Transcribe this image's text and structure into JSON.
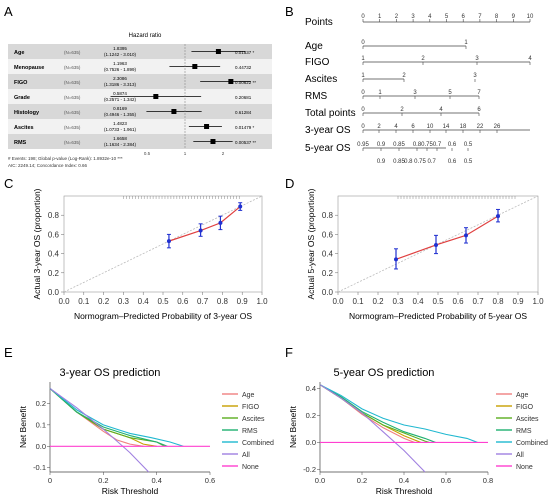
{
  "panels": {
    "A": {
      "letter": "A"
    },
    "B": {
      "letter": "B"
    },
    "C": {
      "letter": "C"
    },
    "D": {
      "letter": "D"
    },
    "E": {
      "letter": "E"
    },
    "F": {
      "letter": "F"
    }
  },
  "forest": {
    "title": "Hazard ratio",
    "rows": [
      {
        "name": "Age",
        "n": "(N=635)",
        "hr": "1.8395",
        "ci": "(1.1242 - 3.010)",
        "p": "0.01537 *"
      },
      {
        "name": "Menopause",
        "n": "(N=635)",
        "hr": "1.1963",
        "ci": "(0.7526 - 1.899)",
        "p": "0.44732"
      },
      {
        "name": "FIGO",
        "n": "(N=635)",
        "hr": "2.3086",
        "ci": "(1.3186 - 3.313)",
        "p": "0.00622 **"
      },
      {
        "name": "Grade",
        "n": "(N=635)",
        "hr": "0.5874",
        "ci": "(0.2571 - 1.342)",
        "p": "0.20681"
      },
      {
        "name": "Histology",
        "n": "(N=635)",
        "hr": "0.8169",
        "ci": "(0.4946 - 1.355)",
        "p": "0.61284"
      },
      {
        "name": "Ascites",
        "n": "(N=635)",
        "hr": "1.4823",
        "ci": "(1.0733 - 1.961)",
        "p": "0.01479 *"
      },
      {
        "name": "RMS",
        "n": "(N=635)",
        "hr": "1.6658",
        "ci": "(1.1634 - 2.384)",
        "p": "0.00537 **"
      }
    ],
    "footer1": "# Events: 198; Global p-value (Log-Rank): 1.8932e-10 ***",
    "footer2": "AIC: 2249.14; Concordance Index: 0.66",
    "axis_ticks": [
      "0.5",
      "1",
      "2"
    ]
  },
  "nomogram": {
    "rows": [
      {
        "label": "Points",
        "ticks": [
          "0",
          "1",
          "2",
          "3",
          "4",
          "5",
          "6",
          "7",
          "8",
          "9",
          "10"
        ]
      },
      {
        "label": "Age",
        "ticks": [
          "0",
          "1"
        ]
      },
      {
        "label": "FIGO",
        "ticks": [
          "1",
          "2",
          "3",
          "4"
        ]
      },
      {
        "label": "Ascites",
        "ticks": [
          "1",
          "2",
          "3"
        ]
      },
      {
        "label": "RMS",
        "ticks": [
          "0",
          "1",
          "3",
          "5",
          "7"
        ]
      },
      {
        "label": "Total points",
        "ticks": [
          "0",
          "2",
          "4",
          "6"
        ]
      },
      {
        "label": "3-year OS",
        "ticks": [
          "0",
          "2",
          "4",
          "6",
          "10",
          "14",
          "18",
          "22",
          "26"
        ]
      },
      {
        "label": "5-year OS",
        "ticks": [
          "0.95",
          "0.9",
          "0.85",
          "0.8",
          "0.75",
          "0.7",
          "0.6",
          "0.5"
        ]
      }
    ],
    "extra_ticks": [
      "0.9",
      "0.85",
      "0.8 0.75 0.7",
      "0.6",
      "0.5"
    ]
  },
  "chart_data": [
    {
      "panel": "C",
      "type": "scatter",
      "title": "",
      "xlabel": "Normogram–Predicted Probability of 3-year OS",
      "ylabel": "Actual 3-year OS (proportion)",
      "xlim": [
        0,
        1
      ],
      "ylim": [
        0,
        1
      ],
      "xticks": [
        "0.0",
        "0.1",
        "0.2",
        "0.3",
        "0.4",
        "0.5",
        "0.6",
        "0.7",
        "0.8",
        "0.9",
        "1.0"
      ],
      "yticks": [
        "0.0",
        "0.2",
        "0.4",
        "0.6",
        "0.8"
      ],
      "points": [
        {
          "x": 0.53,
          "y": 0.53,
          "lo": 0.46,
          "hi": 0.6
        },
        {
          "x": 0.69,
          "y": 0.64,
          "lo": 0.58,
          "hi": 0.71
        },
        {
          "x": 0.79,
          "y": 0.72,
          "lo": 0.65,
          "hi": 0.79
        },
        {
          "x": 0.89,
          "y": 0.89,
          "lo": 0.85,
          "hi": 0.93
        }
      ]
    },
    {
      "panel": "D",
      "type": "scatter",
      "title": "",
      "xlabel": "Normogram–Predicted Probability of 5-year OS",
      "ylabel": "Actual 5-year OS (proportion)",
      "xlim": [
        0,
        1
      ],
      "ylim": [
        0,
        1
      ],
      "xticks": [
        "0.0",
        "0.1",
        "0.2",
        "0.3",
        "0.4",
        "0.5",
        "0.6",
        "0.7",
        "0.8",
        "0.9",
        "1.0"
      ],
      "yticks": [
        "0.0",
        "0.2",
        "0.4",
        "0.6",
        "0.8"
      ],
      "points": [
        {
          "x": 0.29,
          "y": 0.34,
          "lo": 0.24,
          "hi": 0.45
        },
        {
          "x": 0.49,
          "y": 0.49,
          "lo": 0.4,
          "hi": 0.59
        },
        {
          "x": 0.64,
          "y": 0.59,
          "lo": 0.51,
          "hi": 0.67
        },
        {
          "x": 0.8,
          "y": 0.79,
          "lo": 0.73,
          "hi": 0.86
        }
      ]
    },
    {
      "panel": "E",
      "type": "line",
      "title": "3-year OS prediction",
      "xlabel": "Risk Threshold",
      "ylabel": "Net Benefit",
      "xlim": [
        0,
        0.6
      ],
      "ylim": [
        -0.12,
        0.3
      ],
      "xticks": [
        0,
        0.2,
        0.4,
        0.6
      ],
      "yticks": [
        -0.1,
        0.0,
        0.1,
        0.2
      ],
      "series": [
        {
          "name": "Age",
          "color": "#f08080",
          "points": [
            [
              0,
              0.27
            ],
            [
              0.1,
              0.16
            ],
            [
              0.2,
              0.07
            ],
            [
              0.25,
              0.03
            ],
            [
              0.3,
              0.01
            ],
            [
              0.35,
              0.0
            ]
          ]
        },
        {
          "name": "FIGO",
          "color": "#c8a000",
          "points": [
            [
              0,
              0.27
            ],
            [
              0.1,
              0.16
            ],
            [
              0.2,
              0.08
            ],
            [
              0.3,
              0.04
            ],
            [
              0.35,
              0.01
            ],
            [
              0.4,
              0.0
            ]
          ]
        },
        {
          "name": "Ascites",
          "color": "#5aae20",
          "points": [
            [
              0,
              0.27
            ],
            [
              0.1,
              0.16
            ],
            [
              0.2,
              0.08
            ],
            [
              0.3,
              0.04
            ],
            [
              0.4,
              0.02
            ],
            [
              0.43,
              0.0
            ]
          ]
        },
        {
          "name": "RMS",
          "color": "#20b070",
          "points": [
            [
              0,
              0.27
            ],
            [
              0.1,
              0.16
            ],
            [
              0.2,
              0.09
            ],
            [
              0.3,
              0.05
            ],
            [
              0.4,
              0.02
            ],
            [
              0.44,
              0.0
            ]
          ]
        },
        {
          "name": "Combined",
          "color": "#20b8d0",
          "points": [
            [
              0,
              0.27
            ],
            [
              0.1,
              0.17
            ],
            [
              0.2,
              0.1
            ],
            [
              0.3,
              0.06
            ],
            [
              0.38,
              0.04
            ],
            [
              0.45,
              0.02
            ],
            [
              0.5,
              0.0
            ]
          ]
        },
        {
          "name": "All",
          "color": "#a080e0",
          "points": [
            [
              0,
              0.27
            ],
            [
              0.1,
              0.18
            ],
            [
              0.2,
              0.08
            ],
            [
              0.3,
              -0.03
            ],
            [
              0.37,
              -0.12
            ]
          ]
        },
        {
          "name": "None",
          "color": "#ff40d0",
          "points": [
            [
              0,
              0
            ],
            [
              0.6,
              0
            ]
          ]
        }
      ]
    },
    {
      "panel": "F",
      "type": "line",
      "title": "5-year OS prediction",
      "xlabel": "Risk Threshold",
      "ylabel": "Net Benefit",
      "xlim": [
        0,
        0.8
      ],
      "ylim": [
        -0.22,
        0.45
      ],
      "xticks": [
        0.0,
        0.2,
        0.4,
        0.6,
        0.8
      ],
      "yticks": [
        -0.2,
        0.0,
        0.2,
        0.4
      ],
      "series": [
        {
          "name": "Age",
          "color": "#f08080",
          "points": [
            [
              0,
              0.43
            ],
            [
              0.1,
              0.33
            ],
            [
              0.2,
              0.21
            ],
            [
              0.3,
              0.11
            ],
            [
              0.4,
              0.03
            ],
            [
              0.45,
              0.0
            ]
          ]
        },
        {
          "name": "FIGO",
          "color": "#c8a000",
          "points": [
            [
              0,
              0.43
            ],
            [
              0.1,
              0.33
            ],
            [
              0.2,
              0.22
            ],
            [
              0.3,
              0.13
            ],
            [
              0.4,
              0.05
            ],
            [
              0.48,
              0.0
            ]
          ]
        },
        {
          "name": "Ascites",
          "color": "#5aae20",
          "points": [
            [
              0,
              0.43
            ],
            [
              0.1,
              0.33
            ],
            [
              0.2,
              0.22
            ],
            [
              0.3,
              0.13
            ],
            [
              0.4,
              0.07
            ],
            [
              0.5,
              0.01
            ],
            [
              0.52,
              0.0
            ]
          ]
        },
        {
          "name": "RMS",
          "color": "#20b070",
          "points": [
            [
              0,
              0.43
            ],
            [
              0.1,
              0.34
            ],
            [
              0.2,
              0.23
            ],
            [
              0.3,
              0.15
            ],
            [
              0.4,
              0.08
            ],
            [
              0.5,
              0.03
            ],
            [
              0.55,
              0.0
            ]
          ]
        },
        {
          "name": "Combined",
          "color": "#20b8d0",
          "points": [
            [
              0,
              0.43
            ],
            [
              0.1,
              0.35
            ],
            [
              0.2,
              0.25
            ],
            [
              0.3,
              0.18
            ],
            [
              0.4,
              0.13
            ],
            [
              0.5,
              0.1
            ],
            [
              0.6,
              0.06
            ],
            [
              0.7,
              0.03
            ],
            [
              0.75,
              0.0
            ]
          ]
        },
        {
          "name": "All",
          "color": "#a080e0",
          "points": [
            [
              0,
              0.43
            ],
            [
              0.1,
              0.33
            ],
            [
              0.2,
              0.22
            ],
            [
              0.3,
              0.08
            ],
            [
              0.4,
              -0.06
            ],
            [
              0.5,
              -0.22
            ]
          ]
        },
        {
          "name": "None",
          "color": "#ff40d0",
          "points": [
            [
              0,
              0
            ],
            [
              0.8,
              0
            ]
          ]
        }
      ]
    }
  ]
}
